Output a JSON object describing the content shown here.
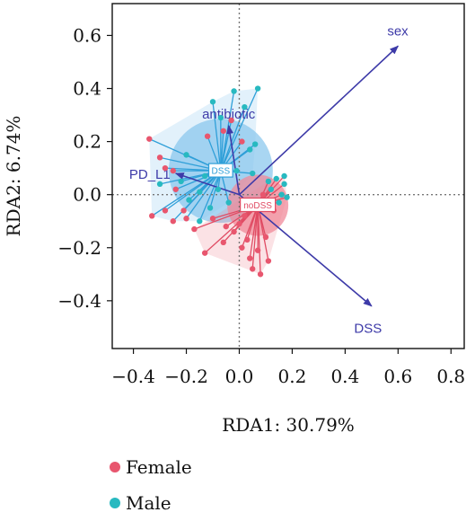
{
  "chart_data": {
    "type": "scatter",
    "title": "",
    "xlabel": "RDA1: 30.79%",
    "ylabel": "RDA2: 6.74%",
    "xlim": [
      -0.48,
      0.85
    ],
    "ylim": [
      -0.58,
      0.72
    ],
    "xticks": [
      "−0.4",
      "−0.2",
      "0.0",
      "0.2",
      "0.4",
      "0.6",
      "0.8"
    ],
    "yticks": [
      "0.6",
      "0.4",
      "0.2",
      "0.0",
      "−0.2",
      "−0.4"
    ],
    "reference_lines": {
      "x": 0,
      "y": 0,
      "style": "dotted"
    },
    "groups": [
      {
        "label": "DSS",
        "color": "#2f9fd8",
        "hull_color": "#8cc8ee",
        "centroid": [
          -0.07,
          0.09
        ],
        "points": [
          {
            "x": -0.02,
            "y": 0.39,
            "sex": "Male"
          },
          {
            "x": 0.02,
            "y": 0.33,
            "sex": "Male"
          },
          {
            "x": -0.1,
            "y": 0.35,
            "sex": "Male"
          },
          {
            "x": -0.07,
            "y": 0.29,
            "sex": "Male"
          },
          {
            "x": 0.07,
            "y": 0.4,
            "sex": "Male"
          },
          {
            "x": -0.12,
            "y": 0.22,
            "sex": "Female"
          },
          {
            "x": -0.06,
            "y": 0.24,
            "sex": "Female"
          },
          {
            "x": -0.03,
            "y": 0.28,
            "sex": "Female"
          },
          {
            "x": 0.01,
            "y": 0.2,
            "sex": "Female"
          },
          {
            "x": 0.04,
            "y": 0.17,
            "sex": "Male"
          },
          {
            "x": 0.06,
            "y": 0.19,
            "sex": "Male"
          },
          {
            "x": -0.2,
            "y": 0.15,
            "sex": "Male"
          },
          {
            "x": -0.34,
            "y": 0.21,
            "sex": "Female"
          },
          {
            "x": -0.3,
            "y": 0.14,
            "sex": "Female"
          },
          {
            "x": -0.28,
            "y": 0.1,
            "sex": "Female"
          },
          {
            "x": -0.25,
            "y": 0.09,
            "sex": "Female"
          },
          {
            "x": -0.3,
            "y": 0.04,
            "sex": "Male"
          },
          {
            "x": -0.22,
            "y": 0.05,
            "sex": "Male"
          },
          {
            "x": -0.24,
            "y": 0.02,
            "sex": "Female"
          },
          {
            "x": -0.15,
            "y": 0.01,
            "sex": "Male"
          },
          {
            "x": -0.13,
            "y": 0.07,
            "sex": "Male"
          },
          {
            "x": -0.08,
            "y": 0.02,
            "sex": "Male"
          },
          {
            "x": -0.19,
            "y": -0.02,
            "sex": "Male"
          },
          {
            "x": -0.21,
            "y": -0.06,
            "sex": "Female"
          },
          {
            "x": -0.2,
            "y": -0.09,
            "sex": "Female"
          },
          {
            "x": -0.11,
            "y": -0.05,
            "sex": "Male"
          },
          {
            "x": -0.04,
            "y": -0.03,
            "sex": "Male"
          },
          {
            "x": -0.01,
            "y": 0.09,
            "sex": "Male"
          },
          {
            "x": 0.05,
            "y": 0.08,
            "sex": "Male"
          },
          {
            "x": -0.33,
            "y": -0.08,
            "sex": "Female"
          },
          {
            "x": -0.28,
            "y": -0.06,
            "sex": "Female"
          },
          {
            "x": -0.25,
            "y": -0.1,
            "sex": "Female"
          },
          {
            "x": -0.15,
            "y": -0.1,
            "sex": "Male"
          }
        ]
      },
      {
        "label": "noDSS",
        "color": "#e04b63",
        "hull_color": "#f08a99",
        "centroid": [
          0.07,
          -0.04
        ],
        "points": [
          {
            "x": -0.13,
            "y": -0.22,
            "sex": "Female"
          },
          {
            "x": -0.06,
            "y": -0.18,
            "sex": "Female"
          },
          {
            "x": -0.02,
            "y": -0.14,
            "sex": "Female"
          },
          {
            "x": 0.0,
            "y": -0.11,
            "sex": "Female"
          },
          {
            "x": -0.05,
            "y": -0.12,
            "sex": "Female"
          },
          {
            "x": 0.03,
            "y": -0.17,
            "sex": "Female"
          },
          {
            "x": 0.04,
            "y": -0.24,
            "sex": "Female"
          },
          {
            "x": 0.05,
            "y": -0.28,
            "sex": "Female"
          },
          {
            "x": 0.07,
            "y": -0.21,
            "sex": "Female"
          },
          {
            "x": 0.08,
            "y": -0.3,
            "sex": "Female"
          },
          {
            "x": 0.1,
            "y": -0.16,
            "sex": "Female"
          },
          {
            "x": 0.11,
            "y": -0.25,
            "sex": "Female"
          },
          {
            "x": 0.02,
            "y": -0.08,
            "sex": "Female"
          },
          {
            "x": 0.06,
            "y": -0.04,
            "sex": "Female"
          },
          {
            "x": 0.12,
            "y": 0.02,
            "sex": "Male"
          },
          {
            "x": 0.14,
            "y": 0.06,
            "sex": "Male"
          },
          {
            "x": 0.16,
            "y": 0.0,
            "sex": "Male"
          },
          {
            "x": 0.17,
            "y": 0.04,
            "sex": "Male"
          },
          {
            "x": 0.18,
            "y": -0.01,
            "sex": "Male"
          },
          {
            "x": 0.15,
            "y": -0.03,
            "sex": "Male"
          },
          {
            "x": 0.13,
            "y": -0.06,
            "sex": "Female"
          },
          {
            "x": 0.17,
            "y": 0.07,
            "sex": "Male"
          },
          {
            "x": 0.11,
            "y": 0.05,
            "sex": "Male"
          },
          {
            "x": 0.09,
            "y": 0.0,
            "sex": "Female"
          },
          {
            "x": -0.1,
            "y": -0.09,
            "sex": "Female"
          },
          {
            "x": -0.17,
            "y": -0.13,
            "sex": "Female"
          },
          {
            "x": 0.01,
            "y": -0.2,
            "sex": "Female"
          }
        ]
      }
    ],
    "vectors": [
      {
        "label": "sex",
        "x": 0.6,
        "y": 0.56
      },
      {
        "label": "antibiotic",
        "x": -0.04,
        "y": 0.26
      },
      {
        "label": "PD_L1",
        "x": -0.24,
        "y": 0.08
      },
      {
        "label": "DSS",
        "x": 0.5,
        "y": -0.42
      }
    ],
    "legend": {
      "placement": "bottom-left",
      "entries": [
        {
          "label": "Female",
          "color": "#e8566e"
        },
        {
          "label": "Male",
          "color": "#28b9c0"
        }
      ]
    }
  }
}
